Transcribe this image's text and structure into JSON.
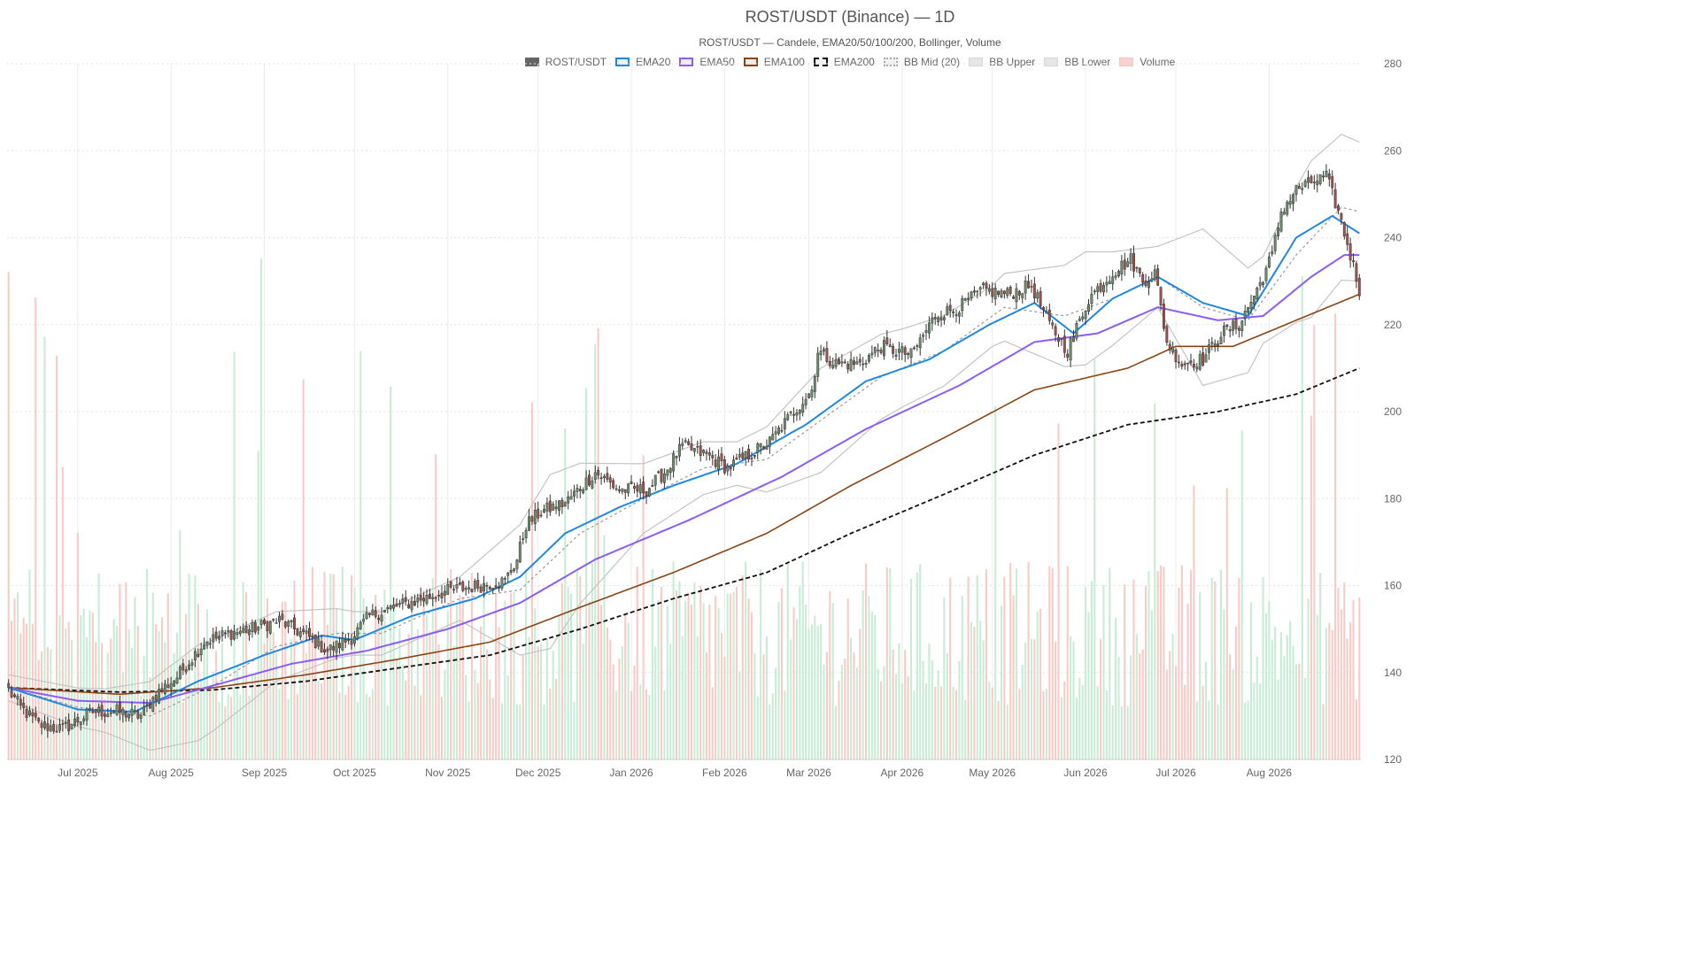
{
  "chart_data": {
    "type": "candlestick",
    "title": "ROST/USDT (Binance) — 1D",
    "subtitle": "ROST/USDT — Candele, EMA20/50/100/200, Bollinger, Volume",
    "y_axis": {
      "min": 120,
      "max": 280,
      "step": 20,
      "side": "right",
      "ticks": [
        "120",
        "140",
        "160",
        "180",
        "200",
        "220",
        "240",
        "260",
        "280"
      ]
    },
    "x_axis": {
      "range": [
        "2025-06-08",
        "2026-08-31"
      ],
      "ticks": [
        {
          "label": "Jul 2025",
          "date": "2025-07-01"
        },
        {
          "label": "Aug 2025",
          "date": "2025-08-01"
        },
        {
          "label": "Sep 2025",
          "date": "2025-09-01"
        },
        {
          "label": "Oct 2025",
          "date": "2025-10-01"
        },
        {
          "label": "Nov 2025",
          "date": "2025-11-01"
        },
        {
          "label": "Dec 2025",
          "date": "2025-12-01"
        },
        {
          "label": "Jan 2026",
          "date": "2026-01-01"
        },
        {
          "label": "Feb 2026",
          "date": "2026-02-01"
        },
        {
          "label": "Mar 2026",
          "date": "2026-03-01"
        },
        {
          "label": "Apr 2026",
          "date": "2026-04-01"
        },
        {
          "label": "May 2026",
          "date": "2026-05-01"
        },
        {
          "label": "Jun 2026",
          "date": "2026-06-01"
        },
        {
          "label": "Jul 2026",
          "date": "2026-07-01"
        },
        {
          "label": "Aug 2026",
          "date": "2026-08-01"
        }
      ]
    },
    "grid": true,
    "legend_position": "top-center",
    "legend": [
      {
        "label": "ROST/USDT",
        "style": "solid",
        "color": "#666666",
        "fill": "#666666"
      },
      {
        "label": "EMA20",
        "style": "line",
        "color": "#1e88e5",
        "fill": "#e8f2fc"
      },
      {
        "label": "EMA50",
        "style": "line",
        "color": "#8b5cf6",
        "fill": "#f1ebfe"
      },
      {
        "label": "EMA100",
        "style": "line",
        "color": "#8b4513",
        "fill": "#f3ece7"
      },
      {
        "label": "EMA200",
        "style": "dashed",
        "color": "#111111",
        "fill": "#f2f2f2"
      },
      {
        "label": "BB Mid (20)",
        "style": "dotted",
        "color": "#aaaaaa",
        "fill": "#f2f2f2"
      },
      {
        "label": "BB Upper",
        "style": "solid",
        "color": "#d5d5d5",
        "fill": "#e6e6e6"
      },
      {
        "label": "BB Lower",
        "style": "solid",
        "color": "#d5d5d5",
        "fill": "#e6e6e6"
      },
      {
        "label": "Volume",
        "style": "solid",
        "color": "#f5c6c0",
        "fill": "#f9d2cd"
      }
    ],
    "colors": {
      "up": "#6b8e6b",
      "down": "#a0524a",
      "volume_up": "#c8ecd6",
      "volume_down": "#f7cbc6"
    },
    "price_anchors": [
      [
        "2025-06-08",
        136
      ],
      [
        "2025-06-12",
        132
      ],
      [
        "2025-06-18",
        128
      ],
      [
        "2025-06-26",
        127
      ],
      [
        "2025-07-06",
        131
      ],
      [
        "2025-07-14",
        131
      ],
      [
        "2025-07-22",
        130
      ],
      [
        "2025-07-27",
        135
      ],
      [
        "2025-08-03",
        139
      ],
      [
        "2025-08-12",
        147
      ],
      [
        "2025-08-20",
        149
      ],
      [
        "2025-08-28",
        150
      ],
      [
        "2025-09-06",
        152
      ],
      [
        "2025-09-16",
        148
      ],
      [
        "2025-09-22",
        145
      ],
      [
        "2025-09-30",
        148
      ],
      [
        "2025-10-06",
        153
      ],
      [
        "2025-10-14",
        155
      ],
      [
        "2025-10-24",
        157
      ],
      [
        "2025-11-02",
        159
      ],
      [
        "2025-11-12",
        160
      ],
      [
        "2025-11-20",
        161
      ],
      [
        "2025-11-24",
        166
      ],
      [
        "2025-11-27",
        174
      ],
      [
        "2025-12-02",
        177
      ],
      [
        "2025-12-10",
        179
      ],
      [
        "2025-12-20",
        186
      ],
      [
        "2025-12-28",
        182
      ],
      [
        "2026-01-06",
        182
      ],
      [
        "2026-01-12",
        186
      ],
      [
        "2026-01-18",
        192
      ],
      [
        "2026-01-26",
        190
      ],
      [
        "2026-02-02",
        187
      ],
      [
        "2026-02-09",
        190
      ],
      [
        "2026-02-16",
        193
      ],
      [
        "2026-02-24",
        200
      ],
      [
        "2026-03-02",
        205
      ],
      [
        "2026-03-04",
        214
      ],
      [
        "2026-03-10",
        211
      ],
      [
        "2026-03-18",
        211
      ],
      [
        "2026-03-25",
        215
      ],
      [
        "2026-04-04",
        213
      ],
      [
        "2026-04-12",
        222
      ],
      [
        "2026-04-20",
        224
      ],
      [
        "2026-04-28",
        228
      ],
      [
        "2026-05-06",
        227
      ],
      [
        "2026-05-14",
        229
      ],
      [
        "2026-05-20",
        220
      ],
      [
        "2026-05-26",
        214
      ],
      [
        "2026-06-02",
        226
      ],
      [
        "2026-06-10",
        232
      ],
      [
        "2026-06-16",
        235
      ],
      [
        "2026-06-20",
        230
      ],
      [
        "2026-06-24",
        232
      ],
      [
        "2026-06-28",
        216
      ],
      [
        "2026-07-03",
        211
      ],
      [
        "2026-07-10",
        212
      ],
      [
        "2026-07-16",
        218
      ],
      [
        "2026-07-22",
        220
      ],
      [
        "2026-07-28",
        228
      ],
      [
        "2026-08-02",
        236
      ],
      [
        "2026-08-05",
        246
      ],
      [
        "2026-08-10",
        251
      ],
      [
        "2026-08-16",
        253
      ],
      [
        "2026-08-20",
        254
      ],
      [
        "2026-08-24",
        246
      ],
      [
        "2026-08-28",
        236
      ],
      [
        "2026-08-31",
        228
      ]
    ],
    "ema20_anchors": [
      [
        "2025-06-08",
        136.5
      ],
      [
        "2025-07-01",
        131.5
      ],
      [
        "2025-07-20",
        131.0
      ],
      [
        "2025-08-10",
        138
      ],
      [
        "2025-09-01",
        144
      ],
      [
        "2025-09-20",
        148.5
      ],
      [
        "2025-10-01",
        147.5
      ],
      [
        "2025-10-20",
        153
      ],
      [
        "2025-11-10",
        157
      ],
      [
        "2025-11-25",
        162
      ],
      [
        "2025-12-10",
        172
      ],
      [
        "2025-12-28",
        178
      ],
      [
        "2026-01-15",
        183
      ],
      [
        "2026-02-05",
        188
      ],
      [
        "2026-02-28",
        197
      ],
      [
        "2026-03-20",
        207
      ],
      [
        "2026-04-10",
        212
      ],
      [
        "2026-04-30",
        220
      ],
      [
        "2026-05-15",
        225
      ],
      [
        "2026-05-28",
        218
      ],
      [
        "2026-06-10",
        226
      ],
      [
        "2026-06-25",
        231
      ],
      [
        "2026-07-10",
        225
      ],
      [
        "2026-07-25",
        222
      ],
      [
        "2026-08-10",
        240
      ],
      [
        "2026-08-22",
        245
      ],
      [
        "2026-08-31",
        241
      ]
    ],
    "ema50_anchors": [
      [
        "2025-06-08",
        136.5
      ],
      [
        "2025-07-01",
        133.5
      ],
      [
        "2025-07-25",
        133
      ],
      [
        "2025-08-15",
        137
      ],
      [
        "2025-09-10",
        142
      ],
      [
        "2025-10-05",
        145
      ],
      [
        "2025-11-01",
        150
      ],
      [
        "2025-11-25",
        156
      ],
      [
        "2025-12-20",
        166
      ],
      [
        "2026-01-20",
        175
      ],
      [
        "2026-02-20",
        185
      ],
      [
        "2026-03-20",
        196
      ],
      [
        "2026-04-20",
        206
      ],
      [
        "2026-05-15",
        216
      ],
      [
        "2026-06-05",
        218
      ],
      [
        "2026-06-25",
        224
      ],
      [
        "2026-07-15",
        221
      ],
      [
        "2026-07-30",
        222
      ],
      [
        "2026-08-15",
        231
      ],
      [
        "2026-08-26",
        236
      ],
      [
        "2026-08-31",
        236
      ]
    ],
    "ema100_anchors": [
      [
        "2025-06-08",
        136.5
      ],
      [
        "2025-07-15",
        135
      ],
      [
        "2025-08-15",
        136.5
      ],
      [
        "2025-09-15",
        139.5
      ],
      [
        "2025-10-15",
        143
      ],
      [
        "2025-11-15",
        147
      ],
      [
        "2025-12-15",
        155
      ],
      [
        "2026-01-15",
        163
      ],
      [
        "2026-02-15",
        172
      ],
      [
        "2026-03-15",
        183
      ],
      [
        "2026-04-15",
        194
      ],
      [
        "2026-05-15",
        205
      ],
      [
        "2026-06-15",
        210
      ],
      [
        "2026-07-01",
        215
      ],
      [
        "2026-07-20",
        215
      ],
      [
        "2026-08-10",
        221
      ],
      [
        "2026-08-31",
        227
      ]
    ],
    "ema200_anchors": [
      [
        "2025-06-08",
        136.5
      ],
      [
        "2025-07-15",
        135.5
      ],
      [
        "2025-08-15",
        136
      ],
      [
        "2025-09-15",
        138
      ],
      [
        "2025-10-15",
        141
      ],
      [
        "2025-11-15",
        144
      ],
      [
        "2025-12-15",
        150
      ],
      [
        "2026-01-15",
        157
      ],
      [
        "2026-02-15",
        163
      ],
      [
        "2026-03-15",
        172
      ],
      [
        "2026-04-15",
        181
      ],
      [
        "2026-05-15",
        190
      ],
      [
        "2026-06-15",
        197
      ],
      [
        "2026-07-15",
        200
      ],
      [
        "2026-08-10",
        204
      ],
      [
        "2026-08-31",
        210
      ]
    ],
    "bb_mid_anchors": [
      [
        "2025-06-08",
        136.5
      ],
      [
        "2025-07-01",
        132
      ],
      [
        "2025-07-25",
        130
      ],
      [
        "2025-08-15",
        137
      ],
      [
        "2025-09-05",
        146
      ],
      [
        "2025-09-25",
        149
      ],
      [
        "2025-10-10",
        149
      ],
      [
        "2025-11-05",
        157
      ],
      [
        "2025-11-25",
        159
      ],
      [
        "2025-12-15",
        172
      ],
      [
        "2026-01-05",
        180
      ],
      [
        "2026-01-25",
        187
      ],
      [
        "2026-02-15",
        189
      ],
      [
        "2026-03-05",
        198
      ],
      [
        "2026-03-25",
        208
      ],
      [
        "2026-04-15",
        214
      ],
      [
        "2026-05-05",
        224
      ],
      [
        "2026-05-25",
        222
      ],
      [
        "2026-06-10",
        226
      ],
      [
        "2026-06-25",
        231
      ],
      [
        "2026-07-10",
        224
      ],
      [
        "2026-07-25",
        221
      ],
      [
        "2026-08-10",
        236
      ],
      [
        "2026-08-25",
        247
      ],
      [
        "2026-08-31",
        246
      ]
    ],
    "bb_width_anchors": [
      [
        "2025-06-08",
        3
      ],
      [
        "2025-07-10",
        5
      ],
      [
        "2025-08-10",
        11
      ],
      [
        "2025-09-05",
        8
      ],
      [
        "2025-10-01",
        5
      ],
      [
        "2025-11-05",
        5
      ],
      [
        "2025-12-05",
        20
      ],
      [
        "2026-01-05",
        8
      ],
      [
        "2026-02-05",
        5
      ],
      [
        "2026-03-05",
        12
      ],
      [
        "2026-04-01",
        9
      ],
      [
        "2026-05-01",
        7
      ],
      [
        "2026-06-01",
        13
      ],
      [
        "2026-06-25",
        7
      ],
      [
        "2026-07-10",
        18
      ],
      [
        "2026-07-30",
        10
      ],
      [
        "2026-08-15",
        18
      ],
      [
        "2026-08-31",
        16
      ]
    ]
  }
}
